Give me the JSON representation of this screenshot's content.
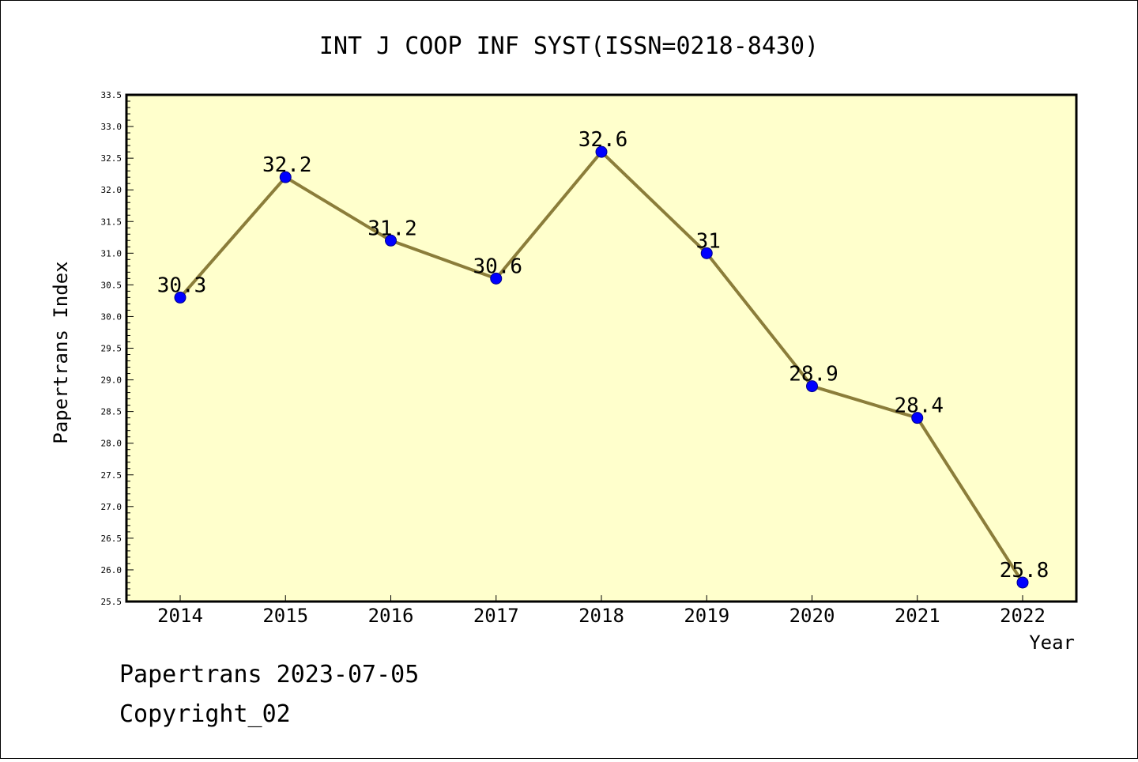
{
  "chart_data": {
    "type": "line",
    "title": "INT J COOP INF SYST(ISSN=0218-8430)",
    "xlabel": "Year",
    "ylabel": "Papertrans Index",
    "x": [
      "2014",
      "2015",
      "2016",
      "2017",
      "2018",
      "2019",
      "2020",
      "2021",
      "2022"
    ],
    "series": [
      {
        "values": [
          30.3,
          32.2,
          31.2,
          30.6,
          32.6,
          31,
          28.9,
          28.4,
          25.8
        ],
        "labels": [
          "30.3",
          "32.2",
          "31.2",
          "30.6",
          "32.6",
          "31",
          "28.9",
          "28.4",
          "25.8"
        ]
      }
    ],
    "ylim": [
      25.5,
      33.5
    ],
    "y_major_step": 0.5,
    "y_minor_step": 0.1,
    "grid": false,
    "colors": {
      "plot_bg": "#ffffcc",
      "line": "#8b7d3a",
      "marker": "#0000ff",
      "marker_edge": "#00008b"
    }
  },
  "footer": {
    "line1": "Papertrans 2023-07-05",
    "line2": "Copyright_02"
  }
}
